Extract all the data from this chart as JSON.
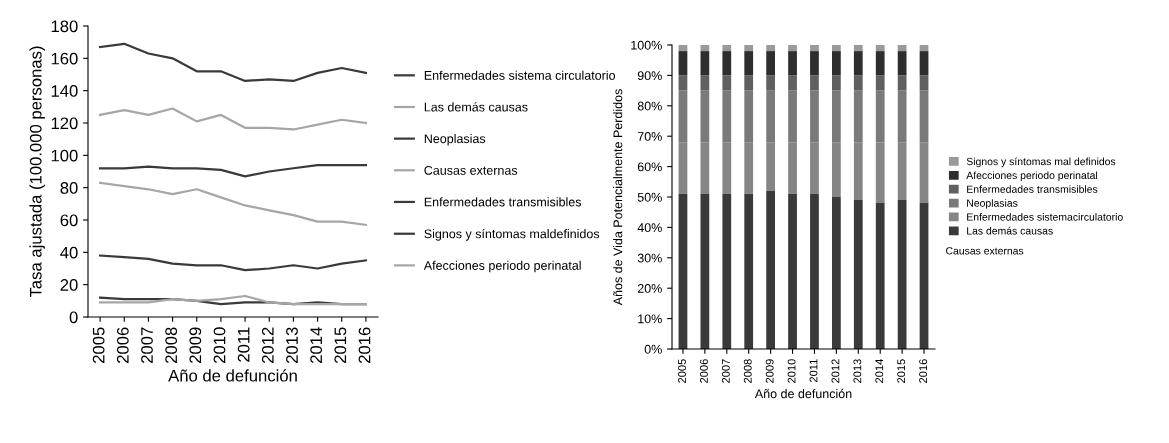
{
  "chart_data": [
    {
      "type": "line",
      "xlabel": "Año de defunción",
      "ylabel": "Tasa ajustada (100.000 personas)",
      "categories": [
        "2005",
        "2006",
        "2007",
        "2008",
        "2009",
        "2010",
        "2011",
        "2012",
        "2013",
        "2014",
        "2015",
        "2016"
      ],
      "ylim": [
        0,
        180
      ],
      "yticks": [
        0,
        20,
        40,
        60,
        80,
        100,
        120,
        140,
        160,
        180
      ],
      "legend": "right",
      "line_style": "solid",
      "series": [
        {
          "name": "Enfermedades sistema circulatorio",
          "color": "#3a3a3a",
          "values": [
            167,
            169,
            163,
            160,
            152,
            152,
            146,
            147,
            146,
            151,
            154,
            151
          ]
        },
        {
          "name": "Las demás causas",
          "color": "#a6a6a6",
          "values": [
            125,
            128,
            125,
            129,
            121,
            125,
            117,
            117,
            116,
            119,
            122,
            120
          ]
        },
        {
          "name": "Neoplasias",
          "color": "#3a3a3a",
          "values": [
            92,
            92,
            93,
            92,
            92,
            91,
            87,
            90,
            92,
            94,
            94,
            94
          ]
        },
        {
          "name": "Causas externas",
          "color": "#a6a6a6",
          "values": [
            83,
            81,
            79,
            76,
            79,
            74,
            69,
            66,
            63,
            59,
            59,
            57
          ]
        },
        {
          "name": "Enfermedades transmisibles",
          "color": "#3a3a3a",
          "values": [
            38,
            37,
            36,
            33,
            32,
            32,
            29,
            30,
            32,
            30,
            33,
            35
          ]
        },
        {
          "name": "Signos y síntomas maldefinidos",
          "color": "#3a3a3a",
          "values": [
            12,
            11,
            11,
            11,
            10,
            8,
            9,
            9,
            8,
            9,
            8,
            8
          ]
        },
        {
          "name": "Afecciones periodo perinatal",
          "color": "#a6a6a6",
          "values": [
            9,
            9,
            9,
            11,
            10,
            11,
            13,
            9,
            8,
            8,
            8,
            8
          ]
        }
      ]
    },
    {
      "type": "bar",
      "stacked": true,
      "xlabel": "Año de defunción",
      "ylabel": "Años de Vida Potencialmente Perdidos",
      "categories": [
        "2005",
        "2006",
        "2007",
        "2008",
        "2009",
        "2010",
        "2011",
        "2012",
        "2013",
        "2014",
        "2015",
        "2016"
      ],
      "ylim": [
        0,
        100
      ],
      "yticks": [
        {
          "value": 0,
          "label": "0%"
        },
        {
          "value": 10,
          "label": "10%"
        },
        {
          "value": 20,
          "label": "20%"
        },
        {
          "value": 30,
          "label": "30%"
        },
        {
          "value": 40,
          "label": "40%"
        },
        {
          "value": 50,
          "label": "50%"
        },
        {
          "value": 60,
          "label": "60%"
        },
        {
          "value": 70,
          "label": "70%"
        },
        {
          "value": 80,
          "label": "80%"
        },
        {
          "value": 90,
          "label": "90%"
        },
        {
          "value": 100,
          "label": "100%"
        }
      ],
      "legend": "right",
      "annotations": [
        "Causas externas"
      ],
      "series": [
        {
          "name": "Las demás causas",
          "color": "#3a3a3a",
          "values": [
            51,
            51,
            51,
            51,
            52,
            51,
            51,
            50,
            49,
            48,
            49,
            48
          ]
        },
        {
          "name": "Enfermedades sistemacirculatorio",
          "color": "#858585",
          "values": [
            17,
            17,
            17,
            17,
            16,
            17,
            17,
            18,
            19,
            20,
            19,
            20
          ]
        },
        {
          "name": "Neoplasias",
          "color": "#7a7a7a",
          "values": [
            17,
            17,
            17,
            17,
            17,
            17,
            17,
            17,
            17,
            17,
            17,
            17
          ]
        },
        {
          "name": "Enfermedades transmisibles",
          "color": "#606060",
          "values": [
            5,
            5,
            5,
            5,
            5,
            5,
            5,
            5,
            5,
            5,
            5,
            5
          ]
        },
        {
          "name": "Afecciones periodo perinatal",
          "color": "#2e2e2e",
          "values": [
            8,
            8,
            8,
            8,
            8,
            8,
            8,
            8,
            8,
            8,
            8,
            8
          ]
        },
        {
          "name": "Signos y síntomas mal definidos",
          "color": "#9a9a9a",
          "values": [
            2,
            2,
            2,
            2,
            2,
            2,
            2,
            2,
            2,
            2,
            2,
            2
          ]
        }
      ]
    }
  ]
}
